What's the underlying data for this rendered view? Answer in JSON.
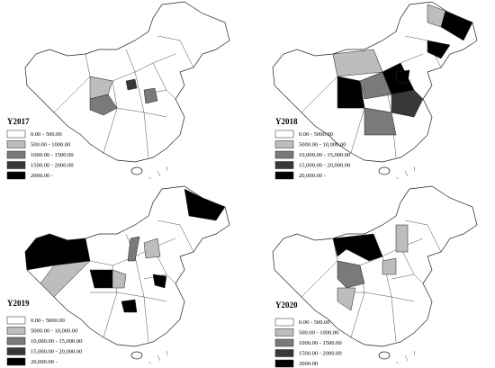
{
  "panels": [
    {
      "title": "Y2017",
      "legend": [
        "0.00 - 500.00",
        "500.00 - 1000.00",
        "1000.00 - 1500.00",
        "1500.00 - 2000.00",
        "2000.00 -"
      ]
    },
    {
      "title": "Y2018",
      "legend": [
        "0.00 - 5000.00",
        "5000.00 - 10,000.00",
        "10,000.00 - 15,000.00",
        "15,000.00 - 20,000.00",
        "20,000.00 -"
      ]
    },
    {
      "title": "Y2019",
      "legend": [
        "0.00 - 5000.00",
        "5000.00 - 10,000.00",
        "10,000.00 - 15,000.00",
        "15,000.00 - 20,000.00",
        "20,000.00 -"
      ]
    },
    {
      "title": "Y2020",
      "legend": [
        "0.00 - 500.00",
        "500.00 - 1000.00",
        "1000.00 - 1500.00",
        "1500.00 - 2000.00",
        "2000.00"
      ]
    }
  ]
}
